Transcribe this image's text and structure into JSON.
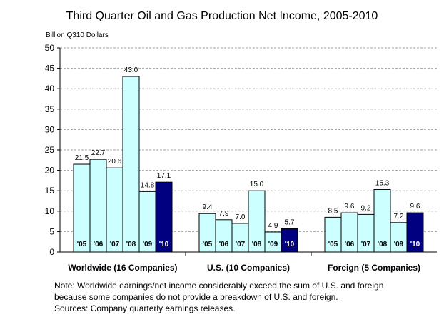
{
  "chart_data": {
    "type": "bar",
    "title": "Third Quarter Oil and Gas Production Net Income, 2005-2010",
    "ylabel": "Billion Q310 Dollars",
    "ylim": [
      0,
      50
    ],
    "yticks": [
      0,
      5,
      10,
      15,
      20,
      25,
      30,
      35,
      40,
      45,
      50
    ],
    "grid": true,
    "year_labels": [
      "'05",
      "'06",
      "'07",
      "'08",
      "'09",
      "'10"
    ],
    "groups": [
      {
        "label": "Worldwide (16 Companies)",
        "values": [
          21.5,
          22.7,
          20.6,
          43.0,
          14.8,
          17.1
        ],
        "value_labels": [
          "21.5",
          "22.7",
          "20.6",
          "43.0",
          "14.8",
          "17.1"
        ]
      },
      {
        "label": "U.S. (10 Companies)",
        "values": [
          9.4,
          7.9,
          7.0,
          15.0,
          4.9,
          5.7
        ],
        "value_labels": [
          "9.4",
          "7.9",
          "7.0",
          "15.0",
          "4.9",
          "5.7"
        ]
      },
      {
        "label": "Foreign (5 Companies)",
        "values": [
          8.5,
          9.6,
          9.2,
          15.3,
          7.2,
          9.6
        ],
        "value_labels": [
          "8.5",
          "9.6",
          "9.2",
          "15.3",
          "7.2",
          "9.6"
        ]
      }
    ],
    "colors": {
      "bar": "#ccffff",
      "highlight": "#000080",
      "grid": "#a0a0a0"
    }
  },
  "note": {
    "line1": "Note: Worldwide earnings/net income considerably exceed the sum of U.S. and foreign",
    "line2": "because some companies do not provide a breakdown of U.S. and foreign.",
    "line3": "Sources: Company quarterly earnings releases."
  }
}
